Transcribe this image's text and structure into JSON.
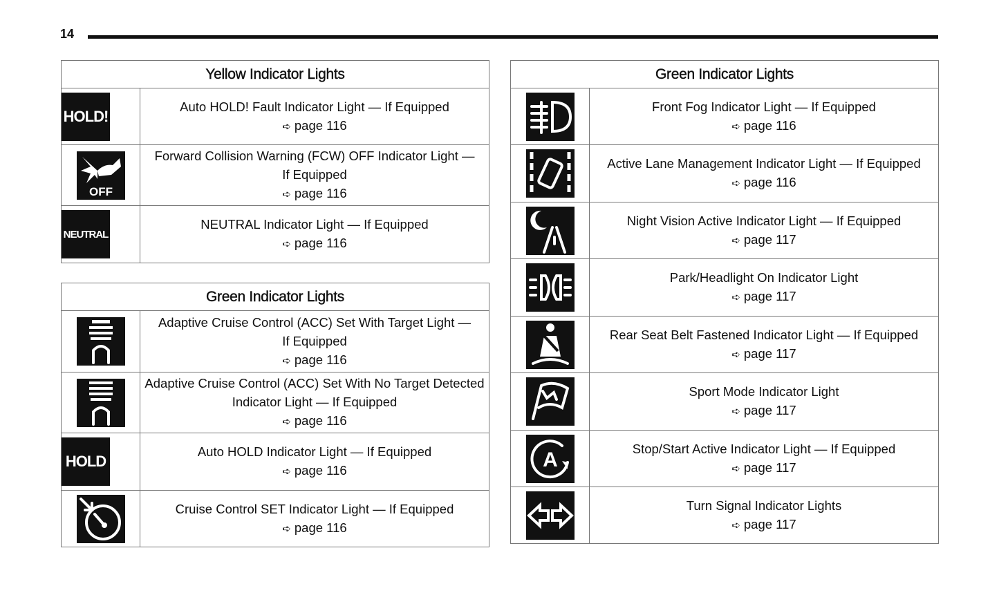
{
  "page_number": "14",
  "arrow_icon": "➪",
  "left_top": {
    "title": "Yellow Indicator Lights",
    "rows": [
      {
        "icon": "hold-fault-icon",
        "icon_text": "HOLD!",
        "lines": [
          "Auto HOLD! Fault Indicator Light — If Equipped"
        ],
        "page": "page 116"
      },
      {
        "icon": "fcw-off-icon",
        "icon_text": "OFF",
        "lines": [
          "Forward Collision Warning (FCW) OFF Indicator Light —",
          "If Equipped"
        ],
        "page": "page 116"
      },
      {
        "icon": "neutral-icon",
        "icon_text": "NEUTRAL",
        "lines": [
          "NEUTRAL Indicator Light — If Equipped"
        ],
        "page": "page 116"
      }
    ]
  },
  "left_bottom": {
    "title": "Green Indicator Lights",
    "rows": [
      {
        "icon": "acc-target-icon",
        "lines": [
          "Adaptive Cruise Control (ACC) Set With Target Light —",
          "If Equipped"
        ],
        "page": "page 116"
      },
      {
        "icon": "acc-no-target-icon",
        "lines": [
          "Adaptive Cruise Control (ACC) Set With No Target Detected",
          "Indicator Light — If Equipped"
        ],
        "page": "page 116"
      },
      {
        "icon": "auto-hold-icon",
        "icon_text": "HOLD",
        "lines": [
          "Auto HOLD Indicator Light — If Equipped"
        ],
        "page": "page 116"
      },
      {
        "icon": "cruise-set-icon",
        "lines": [
          "Cruise Control SET Indicator Light — If Equipped"
        ],
        "page": "page 116"
      }
    ]
  },
  "right": {
    "title": "Green Indicator Lights",
    "rows": [
      {
        "icon": "front-fog-icon",
        "lines": [
          "Front Fog Indicator Light — If Equipped"
        ],
        "page": "page 116"
      },
      {
        "icon": "lane-management-icon",
        "lines": [
          "Active Lane Management Indicator Light — If Equipped"
        ],
        "page": "page 116"
      },
      {
        "icon": "night-vision-icon",
        "lines": [
          "Night Vision Active Indicator Light — If Equipped"
        ],
        "page": "page 117"
      },
      {
        "icon": "park-headlight-icon",
        "lines": [
          "Park/Headlight On Indicator Light"
        ],
        "page": "page 117"
      },
      {
        "icon": "seat-belt-icon",
        "lines": [
          "Rear Seat Belt Fastened Indicator Light — If Equipped"
        ],
        "page": "page 117"
      },
      {
        "icon": "sport-mode-icon",
        "lines": [
          "Sport Mode Indicator Light"
        ],
        "page": "page 117"
      },
      {
        "icon": "stop-start-icon",
        "lines": [
          "Stop/Start Active Indicator Light — If Equipped"
        ],
        "page": "page 117"
      },
      {
        "icon": "turn-signal-icon",
        "lines": [
          "Turn Signal Indicator Lights"
        ],
        "page": "page 117"
      }
    ]
  }
}
